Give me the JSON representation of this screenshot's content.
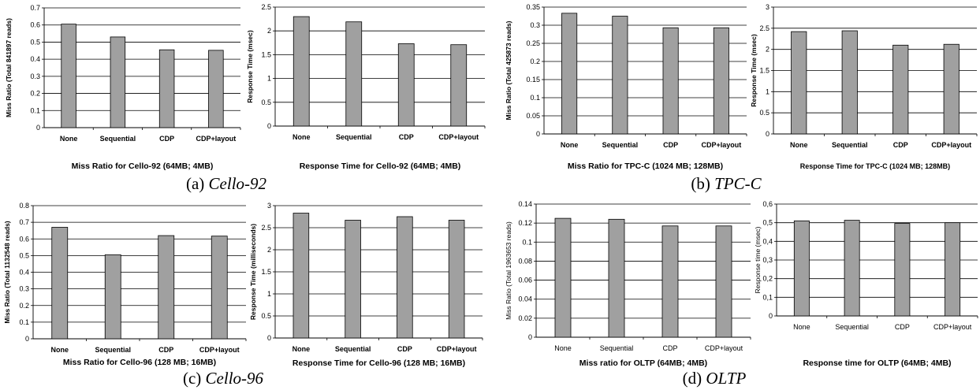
{
  "captions": [
    {
      "letter": "(a) ",
      "name": "Cello-92"
    },
    {
      "letter": "(b) ",
      "name": "TPC-C"
    },
    {
      "letter": "(c) ",
      "name": "Cello-96"
    },
    {
      "letter": "(d) ",
      "name": "OLTP"
    }
  ],
  "colors": {
    "bar": "#a0a0a0",
    "bar_stroke": "#000000",
    "grid": "#000000"
  },
  "chart_data": [
    {
      "type": "bar",
      "title": "Miss Ratio for Cello-92 (64MB; 4MB)",
      "xlabel": "",
      "ylabel": "Miss Ratio (Total 841897 reads)",
      "categories": [
        "None",
        "Sequential",
        "CDP",
        "CDP+layout"
      ],
      "values": [
        0.605,
        0.53,
        0.455,
        0.452
      ],
      "ylim": [
        0,
        0.7
      ],
      "yticks": [
        "0",
        "0.1",
        "0.2",
        "0.3",
        "0.4",
        "0.5",
        "0.6",
        "0.7"
      ],
      "grid": true
    },
    {
      "type": "bar",
      "title": "Response Time for Cello-92 (64MB; 4MB)",
      "xlabel": "",
      "ylabel": "Response Time (msec)",
      "categories": [
        "None",
        "Sequential",
        "CDP",
        "CDP+layout"
      ],
      "values": [
        2.3,
        2.19,
        1.73,
        1.71
      ],
      "ylim": [
        0,
        2.5
      ],
      "yticks": [
        "0",
        "0.5",
        "1",
        "1.5",
        "2",
        "2.5"
      ],
      "grid": true
    },
    {
      "type": "bar",
      "title": "Miss Ratio for TPC-C (1024 MB; 128MB)",
      "xlabel": "",
      "ylabel": "Miss Ratio (Total 425873 reads)",
      "categories": [
        "None",
        "Sequential",
        "CDP",
        "CDP+layout"
      ],
      "values": [
        0.333,
        0.325,
        0.293,
        0.293
      ],
      "ylim": [
        0,
        0.35
      ],
      "yticks": [
        "0",
        "0.05",
        "0.1",
        "0.15",
        "0.2",
        "0.25",
        "0.3",
        "0.35"
      ],
      "grid": true
    },
    {
      "type": "bar",
      "title": "Response Time for TPC-C (1024 MB; 128MB)",
      "xlabel": "",
      "ylabel": "Response Time (msec)",
      "categories": [
        "None",
        "Sequential",
        "CDP",
        "CDP+layout"
      ],
      "values": [
        2.42,
        2.44,
        2.1,
        2.12
      ],
      "ylim": [
        0,
        3
      ],
      "yticks": [
        "0",
        "0.5",
        "1",
        "1.5",
        "2",
        "2.5",
        "3"
      ],
      "grid": true
    },
    {
      "type": "bar",
      "title": "Miss Ratio for Cello-96 (128 MB; 16MB)",
      "xlabel": "",
      "ylabel": "Miss Ratio (Total 1132548 reads)",
      "categories": [
        "None",
        "Sequential",
        "CDP",
        "CDP+layout"
      ],
      "values": [
        0.67,
        0.505,
        0.62,
        0.617
      ],
      "ylim": [
        0,
        0.8
      ],
      "yticks": [
        "0",
        "0.1",
        "0.2",
        "0.3",
        "0.4",
        "0.5",
        "0.6",
        "0.7",
        "0.8"
      ],
      "grid": true
    },
    {
      "type": "bar",
      "title": "Response Time for Cello-96 (128 MB; 16MB)",
      "xlabel": "",
      "ylabel": "Response Time (milliseconds)",
      "categories": [
        "None",
        "Sequential",
        "CDP",
        "CDP+layout"
      ],
      "values": [
        2.83,
        2.67,
        2.75,
        2.67
      ],
      "ylim": [
        0,
        3
      ],
      "yticks": [
        "0",
        "0.5",
        "1",
        "1.5",
        "2",
        "2.5",
        "3"
      ],
      "grid": true
    },
    {
      "type": "bar",
      "title": "Miss ratio for OLTP (64MB; 4MB)",
      "xlabel": "",
      "ylabel": "Miss Ratio (Total 1963653 reads)",
      "categories": [
        "None",
        "Sequential",
        "CDP",
        "CDP+layout"
      ],
      "values": [
        0.125,
        0.124,
        0.117,
        0.117
      ],
      "ylim": [
        0,
        0.14
      ],
      "yticks": [
        "0",
        "0.02",
        "0.04",
        "0.06",
        "0.08",
        "0.1",
        "0.12",
        "0.14"
      ],
      "grid": true
    },
    {
      "type": "bar",
      "title": "Response time for OLTP (64MB; 4MB)",
      "xlabel": "",
      "ylabel": "Response time (msec)",
      "categories": [
        "None",
        "Sequential",
        "CDP",
        "CDP+layout"
      ],
      "values": [
        0.51,
        0.513,
        0.496,
        0.5
      ],
      "ylim": [
        0,
        0.6
      ],
      "yticks": [
        "0",
        "0,1",
        "0,2",
        "0,3",
        "0,4",
        "0,5",
        "0,6"
      ],
      "grid": true
    }
  ]
}
